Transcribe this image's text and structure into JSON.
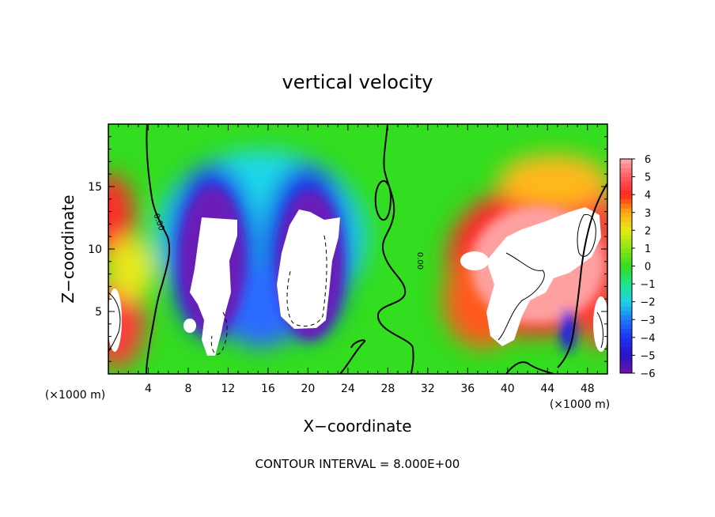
{
  "chart_data": {
    "type": "heatmap",
    "title": "vertical velocity",
    "xlabel": "X−coordinate",
    "ylabel": "Z−coordinate",
    "x_unit_left": "(×1000 m)",
    "x_unit_right": "(×1000 m)",
    "x_ticks": [
      4,
      8,
      12,
      16,
      20,
      24,
      28,
      32,
      36,
      40,
      44,
      48
    ],
    "y_ticks": [
      5,
      10,
      15
    ],
    "xlim": [
      0,
      50
    ],
    "ylim": [
      0,
      20
    ],
    "colorbar": {
      "ticks": [
        "6",
        "5",
        "4",
        "3",
        "2",
        "1",
        "0",
        "−1",
        "−2",
        "−3",
        "−4",
        "−5",
        "−6"
      ],
      "range": [
        -6,
        6
      ]
    },
    "contour_label": "0.00",
    "contour_interval_text": "CONTOUR INTERVAL = 8.000E+00",
    "features": [
      {
        "kind": "updraft",
        "x": 2,
        "z": 13,
        "value": 5
      },
      {
        "kind": "updraft",
        "x": 0.5,
        "z": 4,
        "value": 6
      },
      {
        "kind": "downdraft",
        "x": 10.5,
        "z": 8,
        "value": -6
      },
      {
        "kind": "downdraft",
        "x": 20,
        "z": 8.5,
        "value": -6
      },
      {
        "kind": "downdraft",
        "x": 46,
        "z": 3,
        "value": -5
      },
      {
        "kind": "updraft",
        "x": 43,
        "z": 8,
        "value": 6
      },
      {
        "kind": "updraft",
        "x": 49,
        "z": 4,
        "value": 6
      }
    ]
  }
}
